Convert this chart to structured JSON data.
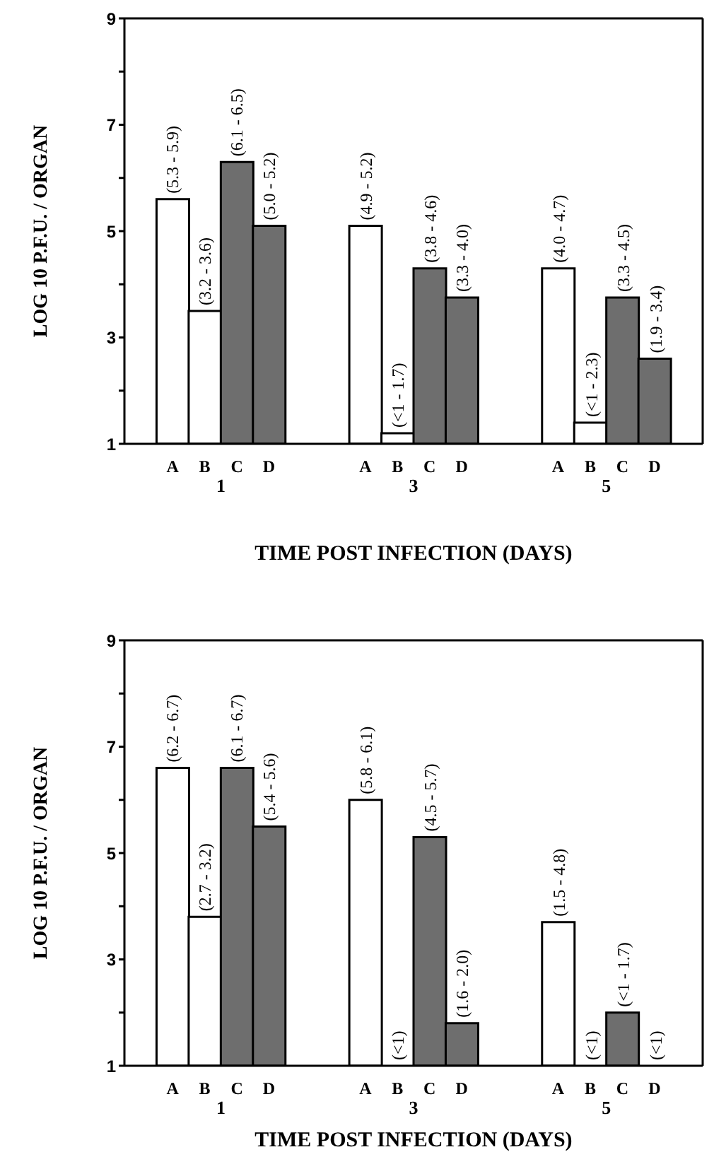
{
  "chart_data": [
    {
      "type": "bar",
      "xlabel": "TIME POST INFECTION (DAYS)",
      "ylabel": "LOG 10 P.F.U. / ORGAN",
      "categories": [
        "A",
        "B",
        "C",
        "D",
        "A",
        "B",
        "C",
        "D",
        "A",
        "B",
        "C",
        "D"
      ],
      "values": [
        5.6,
        3.5,
        6.3,
        5.1,
        5.1,
        1.2,
        4.3,
        3.75,
        4.3,
        1.4,
        3.75,
        2.6
      ],
      "colors": [
        "#ffffff",
        "#ffffff",
        "#6e6e6e",
        "#6e6e6e",
        "#ffffff",
        "#ffffff",
        "#6e6e6e",
        "#6e6e6e",
        "#ffffff",
        "#ffffff",
        "#6e6e6e",
        "#6e6e6e"
      ],
      "value_labels": [
        "(5.3 - 5.9)",
        "(3.2 - 3.6)",
        "(6.1 - 6.5)",
        "(5.0 - 5.2)",
        "(4.9 - 5.2)",
        "(<1 - 1.7)",
        "(3.8 - 4.6)",
        "(3.3 - 4.0)",
        "(4.0 - 4.7)",
        "(<1 - 2.3)",
        "(3.3 - 4.5)",
        "(1.9 - 3.4)"
      ],
      "annotations": [
        "1",
        "3",
        "5"
      ],
      "ylim": [
        1,
        9
      ],
      "yticks": [
        1,
        {
          "value": 2,
          "label": null
        },
        3,
        {
          "value": 4,
          "label": null
        },
        5,
        {
          "value": 6,
          "label": null
        },
        7,
        {
          "value": 8,
          "label": null
        },
        9
      ],
      "grid": false,
      "legend": false
    },
    {
      "type": "bar",
      "xlabel": "TIME POST INFECTION (DAYS)",
      "ylabel": "LOG 10 P.F.U. / ORGAN",
      "categories": [
        "A",
        "B",
        "C",
        "D",
        "A",
        "B",
        "C",
        "D",
        "A",
        "B",
        "C",
        "D"
      ],
      "values": [
        6.6,
        3.8,
        6.6,
        5.5,
        6.0,
        1,
        5.3,
        1.8,
        3.7,
        1,
        2.0,
        1
      ],
      "colors": [
        "#ffffff",
        "#ffffff",
        "#6e6e6e",
        "#6e6e6e",
        "#ffffff",
        "#ffffff",
        "#6e6e6e",
        "#6e6e6e",
        "#ffffff",
        "#ffffff",
        "#6e6e6e",
        "#6e6e6e"
      ],
      "value_labels": [
        "(6.2 - 6.7)",
        "(2.7 - 3.2)",
        "(6.1 - 6.7)",
        "(5.4 - 5.6)",
        "(5.8 - 6.1)",
        "(<1)",
        "(4.5 - 5.7)",
        "(1.6 - 2.0)",
        "(1.5 - 4.8)",
        "(<1)",
        "(<1 - 1.7)",
        "(<1)"
      ],
      "annotations": [
        "1",
        "3",
        "5"
      ],
      "ylim": [
        1,
        9
      ],
      "yticks": [
        1,
        {
          "value": 2,
          "label": null
        },
        3,
        {
          "value": 4,
          "label": null
        },
        5,
        {
          "value": 6,
          "label": null
        },
        7,
        {
          "value": 8,
          "label": null
        },
        9
      ],
      "grid": false,
      "legend": false
    }
  ]
}
